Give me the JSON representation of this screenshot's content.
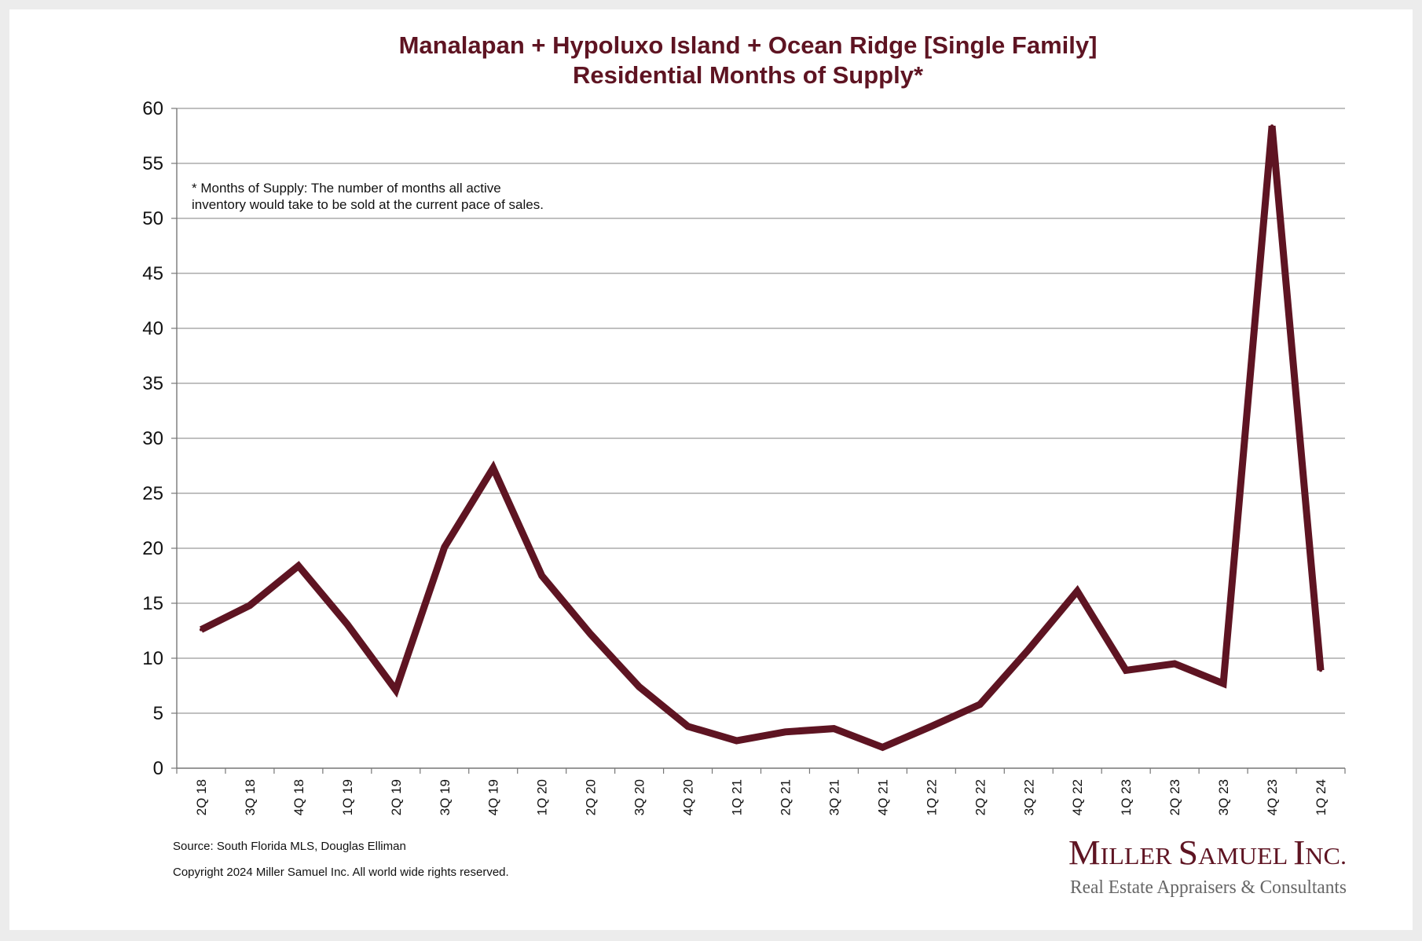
{
  "chart_data": {
    "type": "line",
    "title": [
      "Manalapan + Hypoluxo Island + Ocean Ridge [Single Family]",
      "Residential Months of Supply*"
    ],
    "categories": [
      "2Q 18",
      "3Q 18",
      "4Q 18",
      "1Q 19",
      "2Q 19",
      "3Q 19",
      "4Q 19",
      "1Q 20",
      "2Q 20",
      "3Q 20",
      "4Q 20",
      "1Q 21",
      "2Q 21",
      "3Q 21",
      "4Q 21",
      "1Q 22",
      "2Q 22",
      "3Q 22",
      "4Q 22",
      "1Q 23",
      "2Q 23",
      "3Q 23",
      "4Q 23",
      "1Q 24"
    ],
    "series": [
      {
        "values": [
          12.6,
          14.8,
          18.4,
          13.1,
          7.1,
          20.1,
          27.3,
          17.5,
          12.2,
          7.4,
          3.8,
          2.5,
          3.3,
          3.6,
          1.9,
          3.8,
          5.8,
          10.8,
          16.1,
          8.9,
          9.5,
          7.7,
          58.4,
          8.9
        ],
        "color": "#5e1422"
      }
    ],
    "yticks": [
      0,
      5,
      10,
      15,
      20,
      25,
      30,
      35,
      40,
      45,
      50,
      55,
      60
    ],
    "ylim": [
      0,
      60
    ],
    "grid": true,
    "legend": "none",
    "annotation": [
      "* Months of Supply: The number of months all active",
      "inventory would take to be sold at the current pace of sales."
    ]
  },
  "footer": {
    "source": "Source: South Florida MLS, Douglas Elliman",
    "copyright": "Copyright 2024 Miller Samuel Inc.  All world wide rights reserved."
  },
  "logo": {
    "main": "Miller Samuel Inc.",
    "sub": "Real Estate Appraisers & Consultants"
  },
  "colors": {
    "accent": "#5e1422",
    "grid": "#9a9a9a"
  }
}
